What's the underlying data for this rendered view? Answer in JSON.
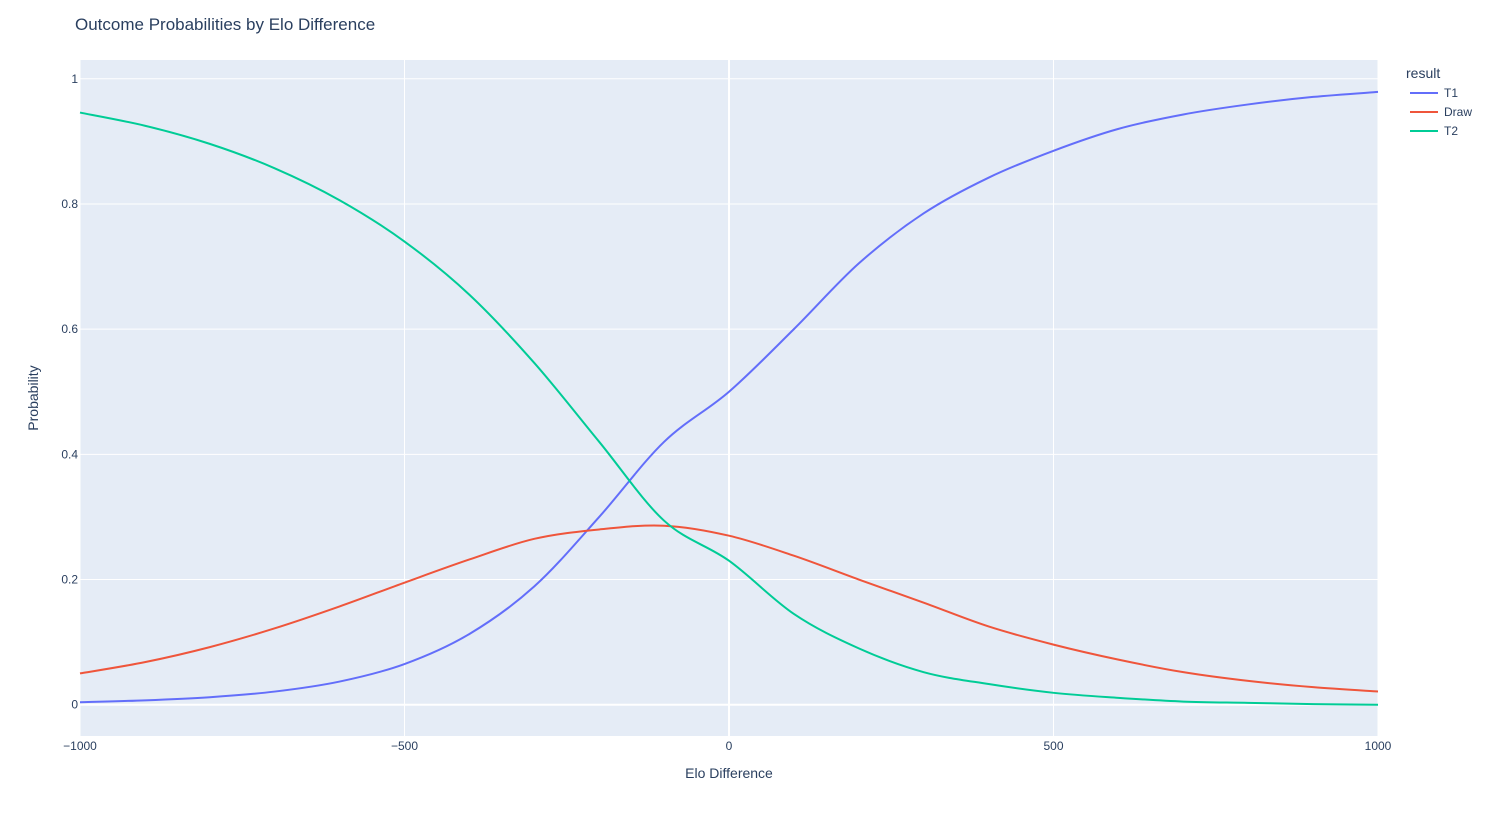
{
  "chart_data": {
    "type": "line",
    "title": "Outcome Probabilities by Elo Difference",
    "xlabel": "Elo Difference",
    "ylabel": "Probability",
    "xlim": [
      -1000,
      1000
    ],
    "ylim": [
      -0.05,
      1.03
    ],
    "x_ticks": [
      -1000,
      -500,
      0,
      500,
      1000
    ],
    "x_tick_labels": [
      "−1000",
      "−500",
      "0",
      "500",
      "1000"
    ],
    "y_ticks": [
      0,
      0.2,
      0.4,
      0.6,
      0.8,
      1
    ],
    "y_tick_labels": [
      "0",
      "0.2",
      "0.4",
      "0.6",
      "0.8",
      "1"
    ],
    "grid": true,
    "legend_title": "result",
    "legend_position": "top-right",
    "colors": {
      "plot_bg": "#e5ecf6",
      "grid": "#ffffff",
      "text": "#2a3f5f"
    },
    "x": [
      -1000,
      -900,
      -800,
      -700,
      -600,
      -500,
      -400,
      -300,
      -200,
      -100,
      0,
      100,
      200,
      300,
      400,
      500,
      600,
      700,
      800,
      900,
      1000
    ],
    "series": [
      {
        "name": "T1",
        "color": "#636efa",
        "values": [
          0.004,
          0.007,
          0.012,
          0.021,
          0.037,
          0.065,
          0.113,
          0.189,
          0.3,
          0.42,
          0.5,
          0.6,
          0.705,
          0.785,
          0.842,
          0.885,
          0.92,
          0.943,
          0.959,
          0.971,
          0.979
        ]
      },
      {
        "name": "Draw",
        "color": "#ef553b",
        "values": [
          0.05,
          0.068,
          0.092,
          0.122,
          0.157,
          0.195,
          0.232,
          0.265,
          0.28,
          0.286,
          0.27,
          0.238,
          0.2,
          0.163,
          0.125,
          0.096,
          0.072,
          0.052,
          0.038,
          0.028,
          0.021
        ]
      },
      {
        "name": "T2",
        "color": "#00cc96",
        "values": [
          0.946,
          0.925,
          0.896,
          0.857,
          0.806,
          0.74,
          0.655,
          0.546,
          0.42,
          0.294,
          0.23,
          0.145,
          0.09,
          0.052,
          0.033,
          0.019,
          0.011,
          0.005,
          0.003,
          0.001,
          0.0
        ]
      }
    ]
  }
}
